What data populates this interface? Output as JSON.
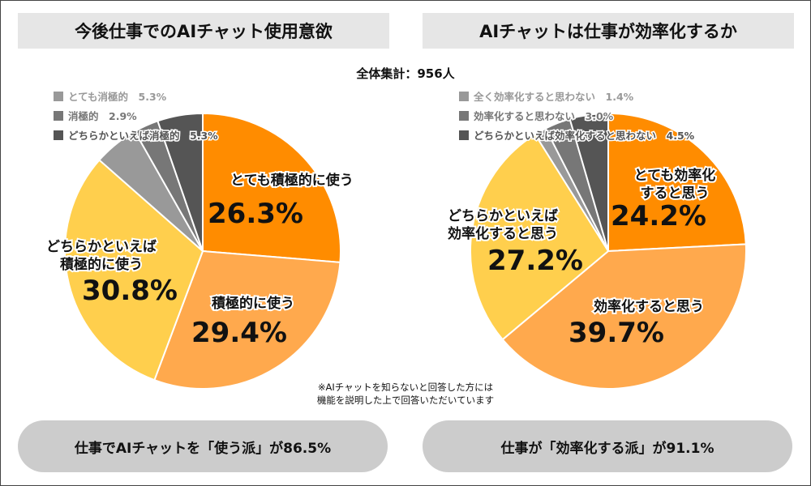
{
  "total_label": "全体集計：956人",
  "note": [
    "※AIチャットを知らないと回答した方には",
    "機能を説明した上で回答いただいています"
  ],
  "chart_data": [
    {
      "type": "pie",
      "title": "今後仕事でのAIチャット使用意欲",
      "summary": "仕事でAIチャットを「使う派」が86.5%",
      "slices": [
        {
          "label": "とても積極的に使う",
          "value": 26.3,
          "value_label": "26.3%",
          "color": "#ff8c00"
        },
        {
          "label": "積極的に使う",
          "value": 29.4,
          "value_label": "29.4%",
          "color": "#ffa94d"
        },
        {
          "label": "どちらかといえば積極的に使う",
          "label_lines": [
            "どちらかといえば",
            "積極的に使う"
          ],
          "value": 30.8,
          "value_label": "30.8%",
          "color": "#ffcf4d"
        },
        {
          "label": "とても消極的",
          "value": 5.3,
          "value_label": "5.3%",
          "color": "#999999"
        },
        {
          "label": "消極的",
          "value": 2.9,
          "value_label": "2.9%",
          "color": "#777777"
        },
        {
          "label": "どちらかといえば消極的",
          "value": 5.3,
          "value_label": "5.3%",
          "color": "#555555"
        }
      ],
      "legend": [
        {
          "label": "とても消極的",
          "value_label": "5.3%",
          "color": "#999999"
        },
        {
          "label": "消極的",
          "value_label": "2.9%",
          "color": "#777777"
        },
        {
          "label": "どちらかといえば消極的",
          "value_label": "5.3%",
          "color": "#555555"
        }
      ]
    },
    {
      "type": "pie",
      "title": "AIチャットは仕事が効率化するか",
      "summary": "仕事が「効率化する派」が91.1%",
      "slices": [
        {
          "label": "とても効率化すると思う",
          "label_lines": [
            "とても効率化",
            "すると思う"
          ],
          "value": 24.2,
          "value_label": "24.2%",
          "color": "#ff8c00"
        },
        {
          "label": "効率化すると思う",
          "value": 39.7,
          "value_label": "39.7%",
          "color": "#ffa94d"
        },
        {
          "label": "どちらかといえば効率化すると思う",
          "label_lines": [
            "どちらかといえば",
            "効率化すると思う"
          ],
          "value": 27.2,
          "value_label": "27.2%",
          "color": "#ffcf4d"
        },
        {
          "label": "全く効率化すると思わない",
          "value": 1.4,
          "value_label": "1.4%",
          "color": "#999999"
        },
        {
          "label": "効率化すると思わない",
          "value": 3.0,
          "value_label": "3.0%",
          "color": "#777777"
        },
        {
          "label": "どちらかといえば効率化すると思わない",
          "value": 4.5,
          "value_label": "4.5%",
          "color": "#555555"
        }
      ],
      "legend": [
        {
          "label": "全く効率化すると思わない",
          "value_label": "1.4%",
          "color": "#999999"
        },
        {
          "label": "効率化すると思わない",
          "value_label": "3.0%",
          "color": "#777777"
        },
        {
          "label": "どちらかといえば効率化すると思わない",
          "value_label": "4.5%",
          "color": "#555555"
        }
      ]
    }
  ]
}
